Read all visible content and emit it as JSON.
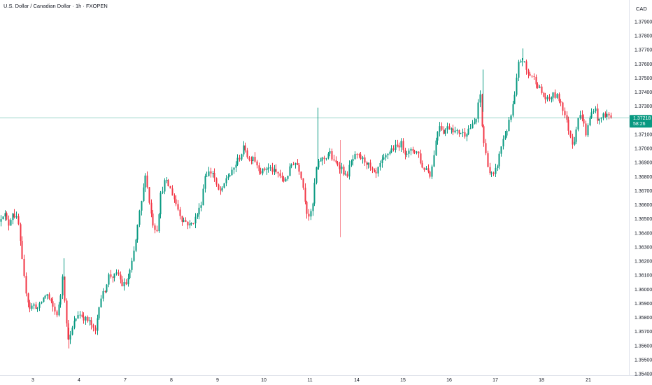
{
  "header": {
    "title": "U.S. Dollar / Canadian Dollar · 1h · FXOPEN"
  },
  "axis": {
    "currency": "CAD"
  },
  "colors": {
    "up": "#089981",
    "down": "#f23645",
    "price_line": "#089981",
    "axis_text": "#131722"
  },
  "price_label": {
    "price": "1.37218",
    "countdown": "58:26"
  },
  "chart_data": {
    "type": "candlestick",
    "ylim": [
      1.3535,
      1.3795
    ],
    "y_ticks": [
      "1.35400",
      "1.35500",
      "1.35600",
      "1.35700",
      "1.35800",
      "1.35900",
      "1.36000",
      "1.36100",
      "1.36200",
      "1.36300",
      "1.36400",
      "1.36500",
      "1.36600",
      "1.36700",
      "1.36800",
      "1.36900",
      "1.37000",
      "1.37100",
      "1.37300",
      "1.37400",
      "1.37500",
      "1.37600",
      "1.37700",
      "1.37800",
      "1.37900"
    ],
    "x_ticks": [
      "3",
      "4",
      "7",
      "8",
      "9",
      "10",
      "11",
      "14",
      "15",
      "16",
      "17",
      "18",
      "21"
    ],
    "current_price": 1.37218,
    "anchors": [
      [
        0,
        1.3648
      ],
      [
        3,
        1.3651
      ],
      [
        8,
        1.3655
      ],
      [
        14,
        1.3645
      ],
      [
        20,
        1.3655
      ],
      [
        28,
        1.3648
      ],
      [
        36,
        1.361
      ],
      [
        41,
        1.3594
      ],
      [
        45,
        1.3587
      ],
      [
        51,
        1.3589
      ],
      [
        57,
        1.3586
      ],
      [
        63,
        1.3593
      ],
      [
        69,
        1.3597
      ],
      [
        75,
        1.359
      ],
      [
        83,
        1.3582
      ],
      [
        88,
        1.3591
      ],
      [
        92,
        1.3612
      ],
      [
        97,
        1.3576
      ],
      [
        101,
        1.3563
      ],
      [
        107,
        1.3575
      ],
      [
        114,
        1.3583
      ],
      [
        120,
        1.3581
      ],
      [
        126,
        1.3578
      ],
      [
        132,
        1.3576
      ],
      [
        138,
        1.3568
      ],
      [
        145,
        1.3593
      ],
      [
        151,
        1.3598
      ],
      [
        158,
        1.361
      ],
      [
        165,
        1.3609
      ],
      [
        171,
        1.3611
      ],
      [
        177,
        1.3603
      ],
      [
        183,
        1.3604
      ],
      [
        190,
        1.3616
      ],
      [
        196,
        1.3634
      ],
      [
        201,
        1.3652
      ],
      [
        206,
        1.3666
      ],
      [
        210,
        1.3683
      ],
      [
        215,
        1.3664
      ],
      [
        220,
        1.3648
      ],
      [
        226,
        1.3641
      ],
      [
        232,
        1.3667
      ],
      [
        238,
        1.3677
      ],
      [
        244,
        1.3673
      ],
      [
        250,
        1.3666
      ],
      [
        256,
        1.3658
      ],
      [
        262,
        1.365
      ],
      [
        268,
        1.3648
      ],
      [
        274,
        1.3645
      ],
      [
        282,
        1.3651
      ],
      [
        289,
        1.3659
      ],
      [
        295,
        1.3681
      ],
      [
        301,
        1.3683
      ],
      [
        307,
        1.3683
      ],
      [
        313,
        1.367
      ],
      [
        320,
        1.367
      ],
      [
        326,
        1.368
      ],
      [
        333,
        1.3682
      ],
      [
        340,
        1.369
      ],
      [
        346,
        1.3695
      ],
      [
        352,
        1.3702
      ],
      [
        358,
        1.3691
      ],
      [
        364,
        1.3695
      ],
      [
        370,
        1.3688
      ],
      [
        376,
        1.3683
      ],
      [
        382,
        1.3686
      ],
      [
        388,
        1.3686
      ],
      [
        395,
        1.3683
      ],
      [
        401,
        1.3682
      ],
      [
        407,
        1.3676
      ],
      [
        413,
        1.3681
      ],
      [
        420,
        1.369
      ],
      [
        426,
        1.369
      ],
      [
        432,
        1.3683
      ],
      [
        437,
        1.3668
      ],
      [
        442,
        1.3652
      ],
      [
        448,
        1.3654
      ],
      [
        454,
        1.3685
      ],
      [
        460,
        1.3692
      ],
      [
        467,
        1.3693
      ],
      [
        473,
        1.3698
      ],
      [
        479,
        1.369
      ],
      [
        485,
        1.3689
      ],
      [
        491,
        1.3686
      ],
      [
        497,
        1.3679
      ],
      [
        503,
        1.3689
      ],
      [
        509,
        1.3694
      ],
      [
        515,
        1.3694
      ],
      [
        521,
        1.3692
      ],
      [
        527,
        1.369
      ],
      [
        533,
        1.3684
      ],
      [
        539,
        1.368
      ],
      [
        545,
        1.3688
      ],
      [
        551,
        1.3692
      ],
      [
        557,
        1.3697
      ],
      [
        563,
        1.37
      ],
      [
        569,
        1.3701
      ],
      [
        575,
        1.3704
      ],
      [
        581,
        1.3698
      ],
      [
        587,
        1.3697
      ],
      [
        593,
        1.3699
      ],
      [
        600,
        1.3697
      ],
      [
        606,
        1.3686
      ],
      [
        612,
        1.3686
      ],
      [
        618,
        1.3681
      ],
      [
        624,
        1.3702
      ],
      [
        630,
        1.3718
      ],
      [
        636,
        1.3712
      ],
      [
        642,
        1.3715
      ],
      [
        648,
        1.3715
      ],
      [
        654,
        1.3711
      ],
      [
        660,
        1.3712
      ],
      [
        666,
        1.371
      ],
      [
        672,
        1.3714
      ],
      [
        678,
        1.3716
      ],
      [
        684,
        1.3722
      ],
      [
        688,
        1.3742
      ],
      [
        692,
        1.371
      ],
      [
        697,
        1.3695
      ],
      [
        702,
        1.3683
      ],
      [
        708,
        1.368
      ],
      [
        714,
        1.369
      ],
      [
        720,
        1.3705
      ],
      [
        726,
        1.3712
      ],
      [
        732,
        1.3722
      ],
      [
        738,
        1.3737
      ],
      [
        744,
        1.3762
      ],
      [
        750,
        1.3763
      ],
      [
        756,
        1.3753
      ],
      [
        762,
        1.3752
      ],
      [
        768,
        1.3748
      ],
      [
        774,
        1.3742
      ],
      [
        780,
        1.3736
      ],
      [
        786,
        1.3734
      ],
      [
        792,
        1.3738
      ],
      [
        798,
        1.3737
      ],
      [
        804,
        1.3733
      ],
      [
        810,
        1.3723
      ],
      [
        816,
        1.3712
      ],
      [
        822,
        1.3702
      ],
      [
        828,
        1.3722
      ],
      [
        834,
        1.3723
      ],
      [
        840,
        1.371
      ],
      [
        846,
        1.3723
      ],
      [
        852,
        1.373
      ],
      [
        858,
        1.3718
      ],
      [
        864,
        1.3724
      ],
      [
        870,
        1.3724
      ],
      [
        876,
        1.3722
      ]
    ],
    "spikes": [
      {
        "x": 454,
        "high": 1.3729
      },
      {
        "x": 486,
        "high": 1.3706,
        "low": 1.3637
      },
      {
        "x": 747,
        "high": 1.3771
      },
      {
        "x": 690,
        "high": 1.3756
      },
      {
        "x": 91,
        "high": 1.3622
      },
      {
        "x": 98,
        "low": 1.3558
      }
    ]
  }
}
